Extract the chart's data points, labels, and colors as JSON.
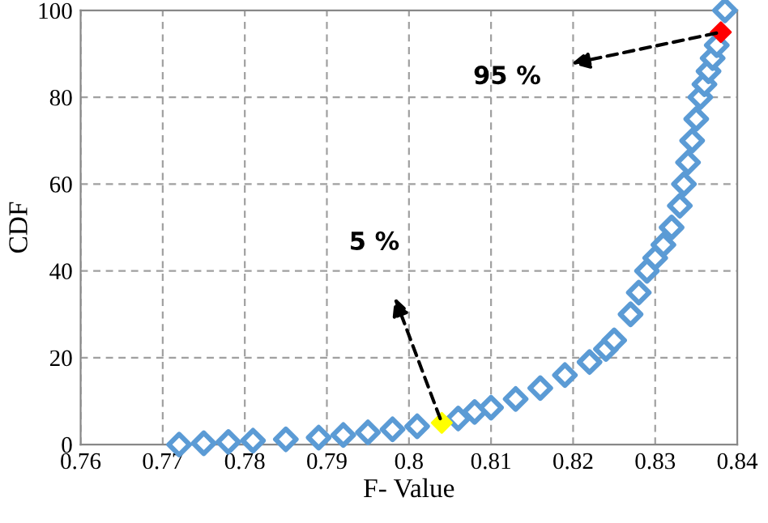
{
  "chart_data": {
    "type": "scatter",
    "xlabel": "F- Value",
    "ylabel": "CDF",
    "xlim": [
      0.76,
      0.84
    ],
    "xticks": [
      0.76,
      0.77,
      0.78,
      0.79,
      0.8,
      0.81,
      0.82,
      0.83,
      0.84
    ],
    "ylim": [
      0,
      100
    ],
    "yticks": [
      0,
      20,
      40,
      60,
      80,
      100
    ],
    "grid": true,
    "marker": "diamond",
    "series": [
      {
        "color": "#5b9bd5",
        "x": [
          0.772,
          0.775,
          0.778,
          0.781,
          0.785,
          0.789,
          0.792,
          0.795,
          0.798,
          0.801,
          0.806,
          0.808,
          0.81,
          0.813,
          0.816,
          0.819,
          0.822,
          0.824,
          0.825,
          0.827,
          0.828,
          0.829,
          0.83,
          0.831,
          0.832,
          0.833,
          0.8335,
          0.834,
          0.8345,
          0.835,
          0.8355,
          0.836,
          0.8365,
          0.837,
          0.8375,
          0.8385
        ],
        "values": [
          0,
          0.3,
          0.6,
          0.9,
          1.2,
          1.6,
          2.2,
          2.8,
          3.5,
          4.2,
          6,
          7.5,
          8.5,
          10.5,
          13,
          16,
          19,
          22,
          24,
          30,
          35,
          40,
          43,
          46,
          50,
          55,
          60,
          65,
          70,
          75,
          80,
          83,
          86,
          89,
          92,
          100
        ]
      },
      {
        "color": "#ffff00",
        "x": [
          0.804
        ],
        "values": [
          5
        ]
      },
      {
        "color": "#ff0000",
        "x": [
          0.838
        ],
        "values": [
          95
        ]
      }
    ],
    "annotations": [
      "5 %",
      "95 %"
    ]
  }
}
